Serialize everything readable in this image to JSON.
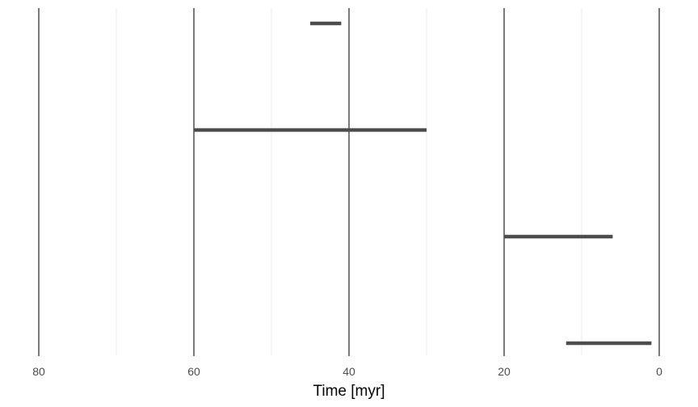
{
  "chart_data": {
    "type": "range-bar",
    "xlabel": "Time [myr]",
    "x_reversed": true,
    "xlim": [
      84,
      0
    ],
    "x_ticks": [
      "80",
      "60",
      "40",
      "20",
      "0"
    ],
    "x_tick_values": [
      80,
      60,
      40,
      20,
      0
    ],
    "minor_gridlines": [
      70,
      50,
      30,
      10
    ],
    "reference_lines": [
      80,
      60,
      40,
      20,
      0
    ],
    "ranges": [
      {
        "start": 45,
        "end": 41
      },
      {
        "start": 60,
        "end": 30
      },
      {
        "start": 20,
        "end": 6
      },
      {
        "start": 12,
        "end": 1
      }
    ],
    "colors": {
      "bar": "#4d4d4d",
      "reference_line": "#333333",
      "minor_grid": "#ebebeb",
      "tick_text": "#4d4d4d"
    }
  }
}
